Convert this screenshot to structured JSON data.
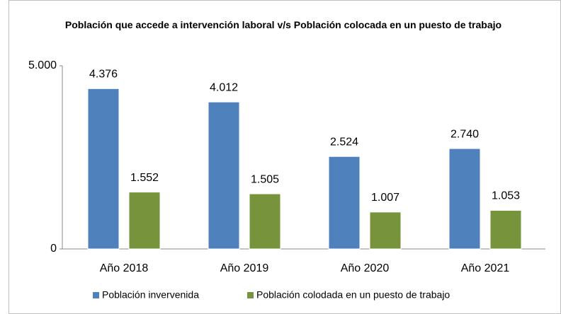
{
  "chart_data": {
    "type": "bar",
    "title": "Población que accede a intervención laboral v/s Población colocada en un puesto de trabajo",
    "categories": [
      "Año 2018",
      "Año 2019",
      "Año 2020",
      "Año 2021"
    ],
    "series": [
      {
        "name": "Población invervenida",
        "color": "#4f81bd",
        "values": [
          4376,
          4012,
          2524,
          2740
        ],
        "value_labels": [
          "4.376",
          "4.012",
          "2.524",
          "2.740"
        ]
      },
      {
        "name": "Población colodada en un puesto de trabajo",
        "color": "#77933c",
        "values": [
          1552,
          1505,
          1007,
          1053
        ],
        "value_labels": [
          "1.552",
          "1.505",
          "1.007",
          "1.053"
        ]
      }
    ],
    "ylim": [
      0,
      5000
    ],
    "yticks": [
      0,
      {
        "value": 5000,
        "label": "5.000"
      }
    ],
    "legend": "bottom"
  }
}
